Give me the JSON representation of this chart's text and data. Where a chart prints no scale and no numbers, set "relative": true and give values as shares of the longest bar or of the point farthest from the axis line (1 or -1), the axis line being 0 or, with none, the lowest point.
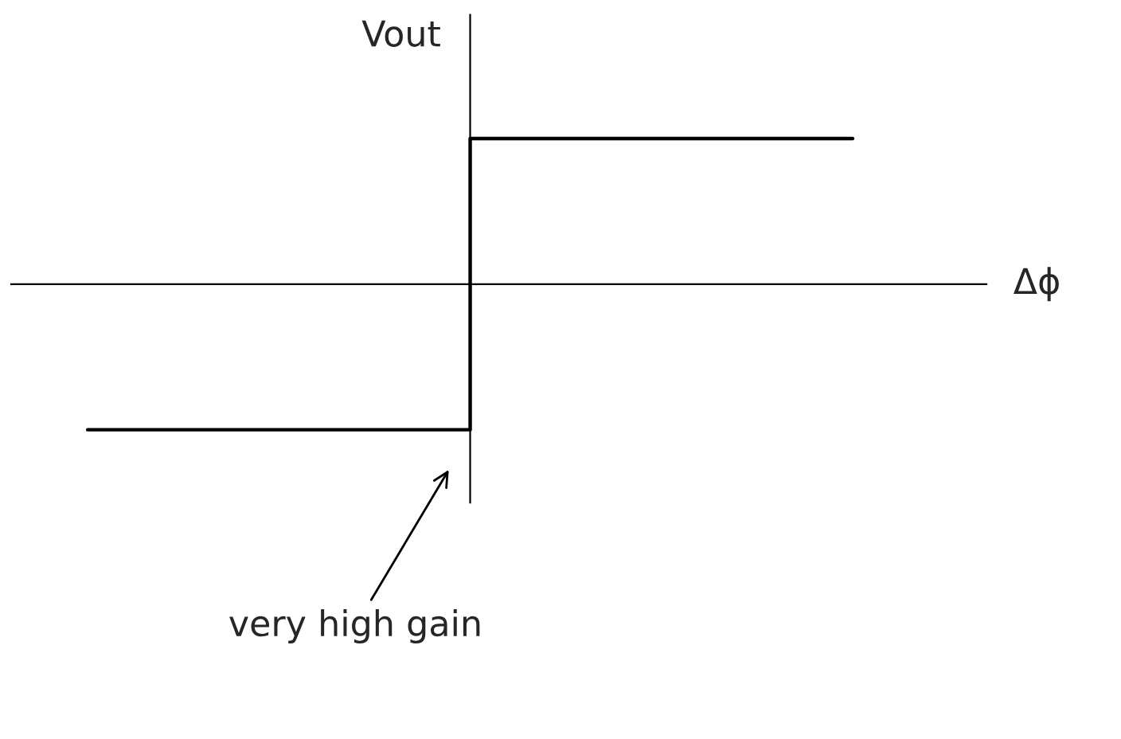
{
  "chart_data": {
    "type": "step",
    "relative": true,
    "categories": [
      null,
      null,
      null
    ],
    "series": [
      {
        "color": "#000000",
        "values": [
          -1,
          1,
          1
        ]
      }
    ],
    "ylabel": "Vout",
    "xlabel": "Δϕ",
    "annotations": [
      "very high gain"
    ],
    "line_style": "solid"
  }
}
